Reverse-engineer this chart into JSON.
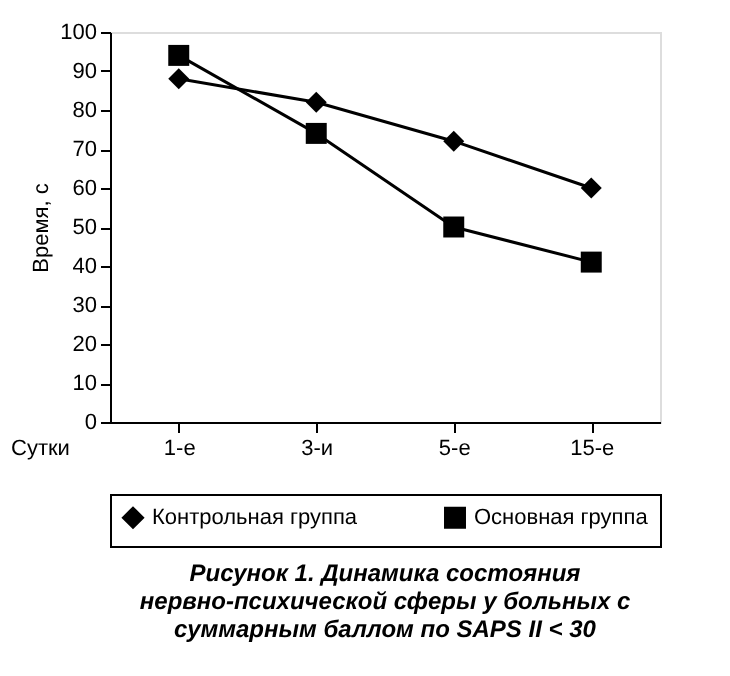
{
  "chart_data": {
    "type": "line",
    "title": "Рисунок 1. Динамика состояния нервно-психической сферы у больных с суммарным баллом по SAPS II < 30",
    "xlabel": "Сутки",
    "ylabel": "Время, с",
    "categories": [
      "1-е",
      "3-и",
      "5-е",
      "15-е"
    ],
    "series": [
      {
        "name": "Контрольная группа",
        "color": "#000000",
        "marker": "diamond",
        "values": [
          88,
          82,
          72,
          60
        ]
      },
      {
        "name": "Основная группа",
        "color": "#000000",
        "marker": "square",
        "values": [
          94,
          74,
          50,
          41
        ]
      }
    ],
    "ylim": [
      0,
      100
    ],
    "yticks": [
      0,
      10,
      20,
      30,
      40,
      50,
      60,
      70,
      80,
      90,
      100
    ],
    "grid": false,
    "legend": "bottom",
    "line_style": "solid"
  }
}
